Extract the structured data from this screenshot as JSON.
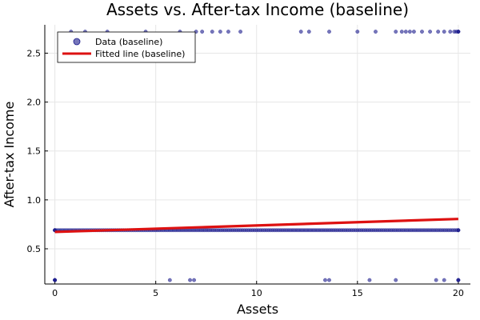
{
  "chart_data": {
    "type": "scatter",
    "title": "Assets vs. After-tax Income (baseline)",
    "xlabel": "Assets",
    "ylabel": "After-tax Income",
    "xlim": [
      -0.5,
      20.6
    ],
    "ylim": [
      0.14,
      2.79
    ],
    "xticks": [
      0,
      5,
      10,
      15,
      20
    ],
    "yticks": [
      0.5,
      1.0,
      1.5,
      2.0,
      2.5
    ],
    "xtick_labels": [
      "0",
      "5",
      "10",
      "15",
      "20"
    ],
    "ytick_labels": [
      "0.5",
      "1.0",
      "1.5",
      "2.0",
      "2.5"
    ],
    "grid": true,
    "legend_position": "top-left",
    "series": [
      {
        "name": "Data (baseline)",
        "kind": "scatter",
        "color": "#1a1a8c",
        "groups": [
          {
            "y": 2.72,
            "x": [
              0.8,
              1.5,
              2.6,
              4.5,
              6.2,
              7.0,
              7.3,
              7.8,
              8.2,
              8.6,
              9.2,
              12.2,
              12.6,
              13.6,
              15.0,
              15.9,
              16.9,
              17.2,
              17.4,
              17.6,
              17.8,
              18.2,
              18.6,
              19.0,
              19.3,
              19.6,
              19.8,
              19.9,
              20.0,
              20.0,
              20.0
            ]
          },
          {
            "y": 0.69,
            "x": [
              0.0,
              0.0,
              0.0,
              0.0,
              0.1,
              0.2,
              0.3,
              0.4,
              0.5,
              0.6,
              0.7,
              0.8,
              0.9,
              1.0,
              1.1,
              1.2,
              1.3,
              1.4,
              1.5,
              1.6,
              1.7,
              1.8,
              1.9,
              2.0,
              2.1,
              2.2,
              2.3,
              2.4,
              2.5,
              2.6,
              2.7,
              2.8,
              2.9,
              3.0,
              3.1,
              3.2,
              3.3,
              3.4,
              3.5,
              3.6,
              3.7,
              3.8,
              3.9,
              4.0,
              4.1,
              4.2,
              4.3,
              4.4,
              4.5,
              4.6,
              4.7,
              4.8,
              4.9,
              5.0,
              5.1,
              5.2,
              5.3,
              5.4,
              5.5,
              5.6,
              5.7,
              5.8,
              5.9,
              6.0,
              6.1,
              6.2,
              6.3,
              6.4,
              6.5,
              6.6,
              6.7,
              6.8,
              6.9,
              7.0,
              7.1,
              7.2,
              7.3,
              7.4,
              7.5,
              7.6,
              7.7,
              7.8,
              7.9,
              8.0,
              8.1,
              8.2,
              8.3,
              8.4,
              8.5,
              8.6,
              8.7,
              8.8,
              8.9,
              9.0,
              9.1,
              9.2,
              9.3,
              9.4,
              9.5,
              9.6,
              9.7,
              9.8,
              9.9,
              10.0,
              10.1,
              10.2,
              10.3,
              10.4,
              10.5,
              10.6,
              10.7,
              10.8,
              10.9,
              11.0,
              11.1,
              11.2,
              11.3,
              11.4,
              11.5,
              11.6,
              11.7,
              11.8,
              11.9,
              12.0,
              12.1,
              12.2,
              12.3,
              12.4,
              12.5,
              12.6,
              12.7,
              12.8,
              12.9,
              13.0,
              13.1,
              13.2,
              13.3,
              13.4,
              13.5,
              13.6,
              13.7,
              13.8,
              13.9,
              14.0,
              14.1,
              14.2,
              14.3,
              14.4,
              14.5,
              14.6,
              14.7,
              14.8,
              14.9,
              15.0,
              15.1,
              15.2,
              15.3,
              15.4,
              15.5,
              15.6,
              15.7,
              15.8,
              15.9,
              16.0,
              16.1,
              16.2,
              16.3,
              16.4,
              16.5,
              16.6,
              16.7,
              16.8,
              16.9,
              17.0,
              17.1,
              17.2,
              17.3,
              17.4,
              17.5,
              17.6,
              17.7,
              17.8,
              17.9,
              18.0,
              18.1,
              18.2,
              18.3,
              18.4,
              18.5,
              18.6,
              18.7,
              18.8,
              18.9,
              19.0,
              19.1,
              19.2,
              19.3,
              19.4,
              19.5,
              19.6,
              19.7,
              19.8,
              19.9,
              20.0,
              20.0,
              20.0
            ]
          },
          {
            "y": 0.18,
            "x": [
              0.0,
              0.0,
              0.0,
              0.0,
              5.7,
              6.7,
              6.9,
              13.4,
              13.6,
              15.6,
              16.9,
              18.9,
              19.3,
              20.0,
              20.0,
              20.0
            ]
          }
        ]
      },
      {
        "name": "Fitted line (baseline)",
        "kind": "line",
        "color": "#dd1111",
        "x": [
          0,
          20
        ],
        "y": [
          0.672,
          0.805
        ]
      }
    ]
  }
}
